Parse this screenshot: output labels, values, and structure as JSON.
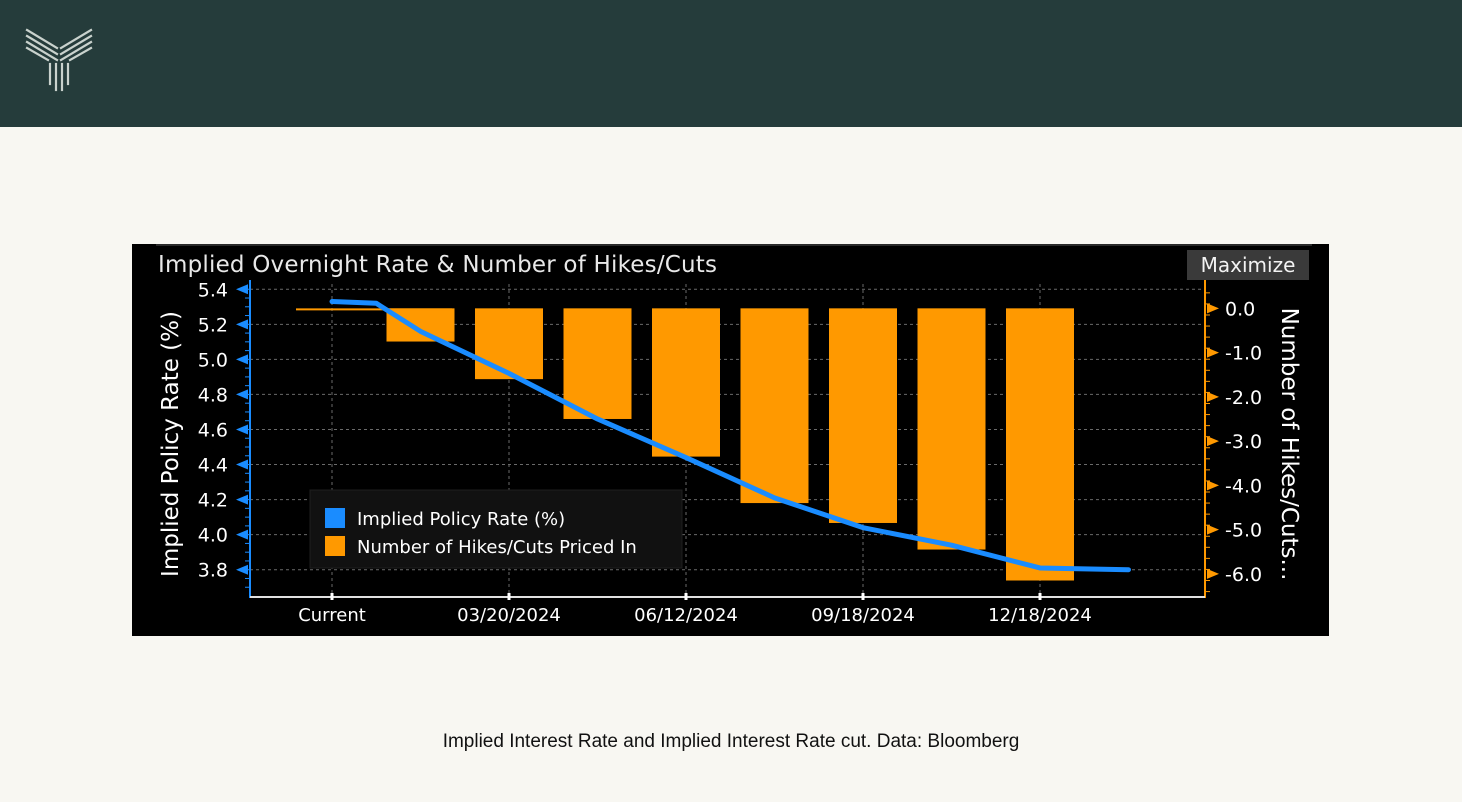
{
  "header": {
    "logo_icon": "brand-logo-icon",
    "background": "#253c3b"
  },
  "chart": {
    "maximize_label": "Maximize"
  },
  "caption": "Implied Interest Rate and Implied Interest Rate cut. Data: Bloomberg",
  "chart_data": {
    "type": "bar+line",
    "title": "Implied Overnight Rate & Number of Hikes/Cuts",
    "xlabel": "",
    "x_ticks": [
      "Current",
      "03/20/2024",
      "06/12/2024",
      "09/18/2024",
      "12/18/2024"
    ],
    "y_left": {
      "label": "Implied Policy Rate (%)",
      "ylim": [
        3.65,
        5.43
      ],
      "ticks": [
        "5.4",
        "5.2",
        "5.0",
        "4.8",
        "4.6",
        "4.4",
        "4.2",
        "4.0",
        "3.8"
      ]
    },
    "y_right": {
      "label": "Number of Hikes/Cuts...",
      "ylim": [
        -6.5,
        0.55
      ],
      "ticks": [
        "0.0",
        "-1.0",
        "-2.0",
        "-3.0",
        "-4.0",
        "-5.0",
        "-6.0"
      ]
    },
    "series": [
      {
        "name": "Implied Policy Rate (%)",
        "type": "line",
        "axis": "left",
        "color": "#1a8cff",
        "x": [
          0,
          0.5,
          1,
          2,
          3,
          4,
          5,
          6,
          7,
          8,
          9
        ],
        "values": [
          5.33,
          5.32,
          5.16,
          4.92,
          4.66,
          4.44,
          4.21,
          4.04,
          3.94,
          3.81,
          3.8
        ]
      },
      {
        "name": "Number of Hikes/Cuts Priced In",
        "type": "bar",
        "axis": "right",
        "color": "#ff9900",
        "x": [
          1,
          2,
          3,
          4,
          5,
          6,
          7,
          8
        ],
        "values": [
          -0.75,
          -1.6,
          -2.5,
          -3.35,
          -4.4,
          -4.85,
          -5.45,
          -6.15
        ]
      }
    ],
    "legend_position": "bottom-left",
    "grid": true
  }
}
